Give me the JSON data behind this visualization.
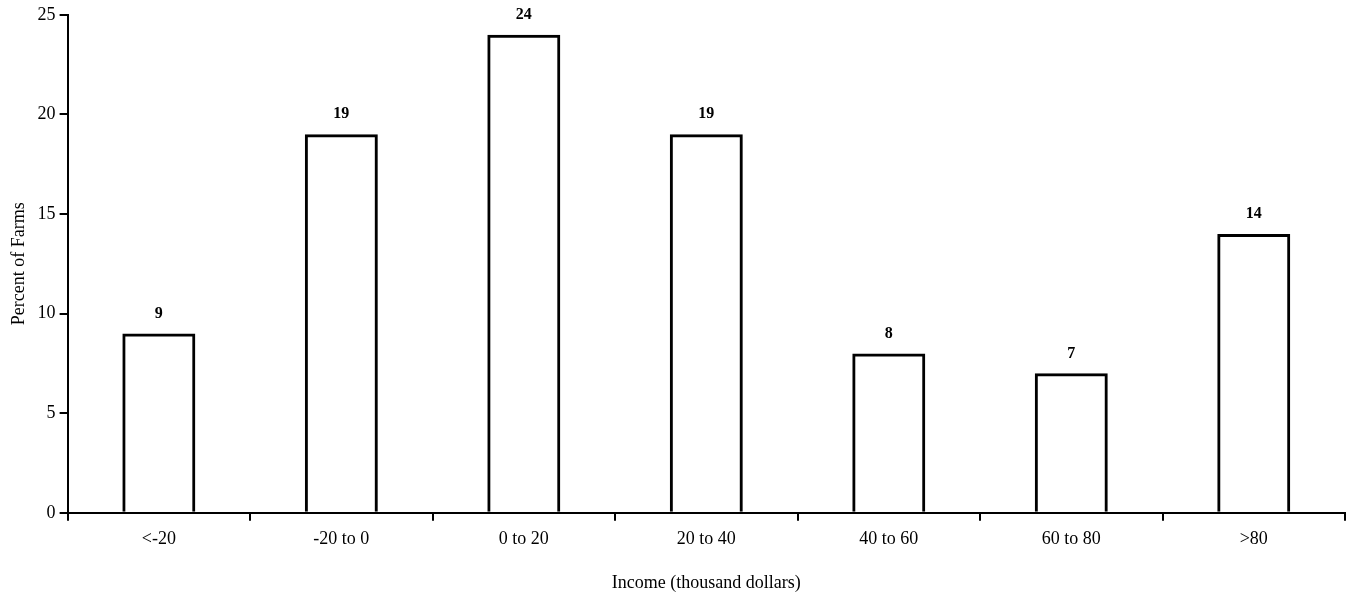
{
  "chart_data": {
    "type": "bar",
    "xlabel": "Income (thousand dollars)",
    "ylabel": "Percent of Farms",
    "categories": [
      "<-20",
      "-20 to 0",
      "0 to 20",
      "20 to 40",
      "40 to 60",
      "60 to 80",
      ">80"
    ],
    "values": [
      9,
      19,
      24,
      19,
      8,
      7,
      14
    ],
    "color": "#000000",
    "ylim": [
      0,
      25
    ],
    "yticks": [
      0,
      5,
      10,
      15,
      20,
      25
    ],
    "grid": false,
    "legend": false,
    "data_labels": true
  }
}
